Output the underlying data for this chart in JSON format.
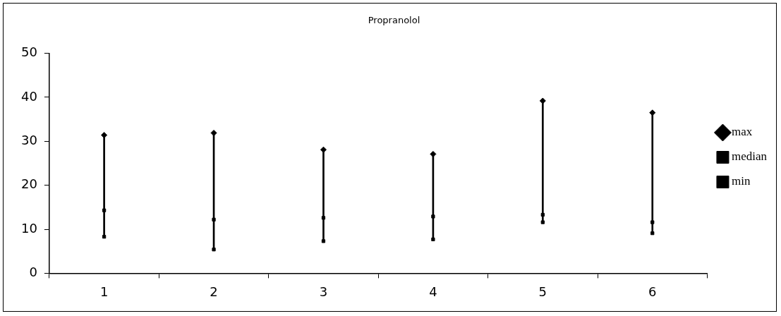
{
  "chart_data": {
    "type": "bar",
    "title": "Propranolol",
    "categories": [
      "1",
      "2",
      "3",
      "4",
      "5",
      "6"
    ],
    "series": [
      {
        "type": "bar",
        "color": "#000000",
        "base": [
          8.3,
          5.4,
          7.3,
          7.7,
          11.6,
          9.1
        ],
        "values": [
          23.1,
          26.5,
          20.8,
          19.4,
          27.6,
          27.4
        ]
      },
      {
        "type": "scatter",
        "name": "max",
        "color": "#000000",
        "marker": "diamond",
        "x": [
          "1",
          "2",
          "3",
          "4",
          "5",
          "6"
        ],
        "values": [
          31.4,
          31.9,
          28.1,
          27.1,
          39.2,
          36.5
        ]
      },
      {
        "type": "scatter",
        "name": "median",
        "color": "#000000",
        "marker": "square",
        "x": [
          "1",
          "2",
          "3",
          "4",
          "5",
          "6"
        ],
        "values": [
          14.3,
          12.2,
          12.6,
          12.9,
          13.3,
          11.6
        ]
      },
      {
        "type": "scatter",
        "name": "min",
        "color": "#000000",
        "marker": "square",
        "x": [
          "1",
          "2",
          "3",
          "4",
          "5",
          "6"
        ],
        "values": [
          8.3,
          5.4,
          7.3,
          7.7,
          11.6,
          9.1
        ]
      }
    ],
    "ylim": [
      0,
      50
    ],
    "yticks": [
      0,
      10,
      20,
      30,
      40,
      50
    ],
    "grid": false,
    "legend": "right"
  }
}
